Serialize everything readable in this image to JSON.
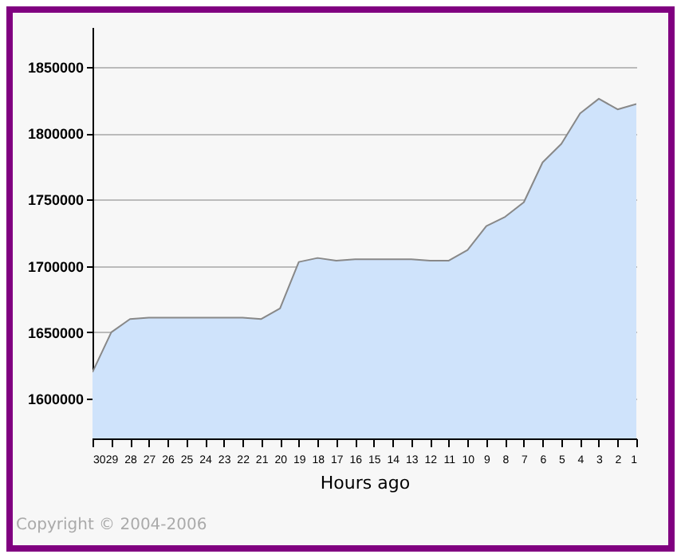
{
  "chart_data": {
    "type": "area",
    "xlabel": "Hours ago",
    "categories": [
      "30",
      "29",
      "28",
      "27",
      "26",
      "25",
      "24",
      "23",
      "22",
      "21",
      "20",
      "19",
      "18",
      "17",
      "16",
      "15",
      "14",
      "13",
      "12",
      "11",
      "10",
      "9",
      "8",
      "7",
      "6",
      "5",
      "4",
      "3",
      "2",
      "1"
    ],
    "series": [
      {
        "color": "#cfe3fb",
        "values": [
          1620000,
          1650000,
          1660000,
          1661000,
          1661000,
          1661000,
          1661000,
          1661000,
          1661000,
          1660000,
          1668000,
          1703000,
          1706000,
          1704000,
          1705000,
          1705000,
          1705000,
          1705000,
          1704000,
          1704000,
          1712000,
          1730000,
          1737000,
          1748000,
          1778000,
          1792000,
          1815000,
          1826000,
          1818000,
          1822000
        ]
      }
    ],
    "ylim": [
      1570000,
      1880000
    ],
    "yticks": [
      1600000,
      1650000,
      1700000,
      1750000,
      1800000,
      1850000
    ],
    "grid": "y",
    "legend": false,
    "annotations": [
      "Copyright © 2004-2006"
    ]
  }
}
